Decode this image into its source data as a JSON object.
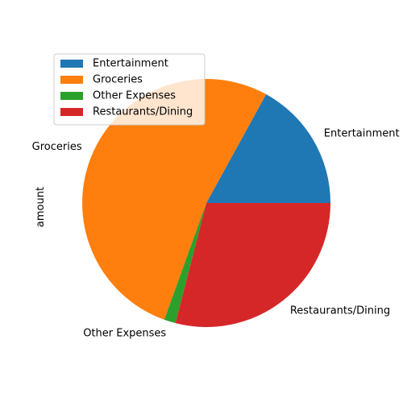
{
  "chart_data": {
    "type": "pie",
    "title": "",
    "ylabel": "amount",
    "categories": [
      "Entertainment",
      "Groceries",
      "Other Expenses",
      "Restaurants/Dining"
    ],
    "values": [
      17.0,
      52.5,
      1.5,
      29.0
    ],
    "colors": [
      "#1f77b4",
      "#ff7f0e",
      "#2ca02c",
      "#d62728"
    ],
    "legend": {
      "position": "upper-left",
      "entries": [
        "Entertainment",
        "Groceries",
        "Other Expenses",
        "Restaurants/Dining"
      ]
    },
    "start_angle": 0,
    "direction": "counterclockwise"
  }
}
